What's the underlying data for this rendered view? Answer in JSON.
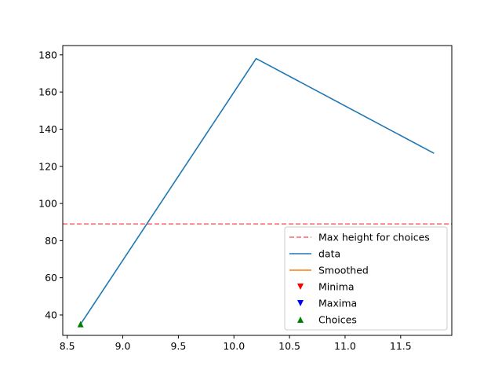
{
  "chart_data": {
    "type": "line",
    "xlim": [
      8.46,
      11.96
    ],
    "ylim": [
      29,
      185
    ],
    "xticks": [
      {
        "value": 8.5,
        "label": "8.5"
      },
      {
        "value": 9.0,
        "label": "9.0"
      },
      {
        "value": 9.5,
        "label": "9.5"
      },
      {
        "value": 10.0,
        "label": "10.0"
      },
      {
        "value": 10.5,
        "label": "10.5"
      },
      {
        "value": 11.0,
        "label": "11.0"
      },
      {
        "value": 11.5,
        "label": "11.5"
      }
    ],
    "yticks": [
      {
        "value": 40,
        "label": "40"
      },
      {
        "value": 60,
        "label": "60"
      },
      {
        "value": 80,
        "label": "80"
      },
      {
        "value": 100,
        "label": "100"
      },
      {
        "value": 120,
        "label": "120"
      },
      {
        "value": 140,
        "label": "140"
      },
      {
        "value": 160,
        "label": "160"
      },
      {
        "value": 180,
        "label": "180"
      }
    ],
    "grid": false,
    "legend_position": "bottom-right",
    "series": [
      {
        "name": "data",
        "kind": "line",
        "color": "#1f77b4",
        "x": [
          8.62,
          10.2,
          11.8
        ],
        "y": [
          35,
          178,
          127
        ]
      },
      {
        "name": "Smoothed",
        "kind": "line",
        "color": "#ff7f0e",
        "x": [],
        "y": []
      },
      {
        "name": "Minima",
        "kind": "marker-down",
        "color": "#ff0000",
        "x": [],
        "y": []
      },
      {
        "name": "Maxima",
        "kind": "marker-down",
        "color": "#0000ff",
        "x": [],
        "y": []
      },
      {
        "name": "Choices",
        "kind": "marker-up",
        "color": "#008000",
        "x": [
          8.62
        ],
        "y": [
          35
        ]
      }
    ],
    "hline": {
      "name": "Max height for choices",
      "y": 89,
      "color": "#ff6666",
      "style": "dashed"
    },
    "legend": [
      {
        "label": "Max height for choices",
        "kind": "dashed",
        "color": "#ff6666"
      },
      {
        "label": "data",
        "kind": "line",
        "color": "#1f77b4"
      },
      {
        "label": "Smoothed",
        "kind": "line",
        "color": "#ff7f0e"
      },
      {
        "label": "Minima",
        "kind": "marker-down",
        "color": "#ff0000"
      },
      {
        "label": "Maxima",
        "kind": "marker-down",
        "color": "#0000ff"
      },
      {
        "label": "Choices",
        "kind": "marker-up",
        "color": "#008000"
      }
    ]
  }
}
